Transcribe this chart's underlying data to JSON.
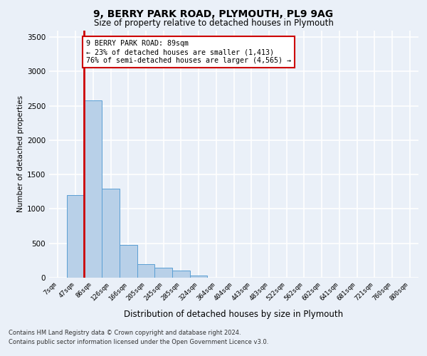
{
  "title_line1": "9, BERRY PARK ROAD, PLYMOUTH, PL9 9AG",
  "title_line2": "Size of property relative to detached houses in Plymouth",
  "xlabel": "Distribution of detached houses by size in Plymouth",
  "ylabel": "Number of detached properties",
  "bin_labels": [
    "7sqm",
    "47sqm",
    "86sqm",
    "126sqm",
    "166sqm",
    "205sqm",
    "245sqm",
    "285sqm",
    "324sqm",
    "364sqm",
    "404sqm",
    "443sqm",
    "483sqm",
    "522sqm",
    "562sqm",
    "602sqm",
    "641sqm",
    "681sqm",
    "721sqm",
    "760sqm",
    "800sqm"
  ],
  "bar_heights": [
    5,
    1200,
    2580,
    1300,
    480,
    200,
    150,
    100,
    30,
    5,
    0,
    0,
    0,
    0,
    0,
    0,
    0,
    0,
    0,
    0,
    0
  ],
  "bar_color": "#b8d0e8",
  "bar_edge_color": "#5a9fd4",
  "annotation_text": "9 BERRY PARK ROAD: 89sqm\n← 23% of detached houses are smaller (1,413)\n76% of semi-detached houses are larger (4,565) →",
  "annotation_box_color": "#ffffff",
  "annotation_box_edge": "#cc0000",
  "red_line_color": "#cc0000",
  "ylim": [
    0,
    3600
  ],
  "yticks": [
    0,
    500,
    1000,
    1500,
    2000,
    2500,
    3000,
    3500
  ],
  "footer_line1": "Contains HM Land Registry data © Crown copyright and database right 2024.",
  "footer_line2": "Contains public sector information licensed under the Open Government Licence v3.0.",
  "background_color": "#eaf0f8",
  "plot_bg_color": "#eaf0f8",
  "grid_color": "#ffffff",
  "property_line_bin": 2
}
